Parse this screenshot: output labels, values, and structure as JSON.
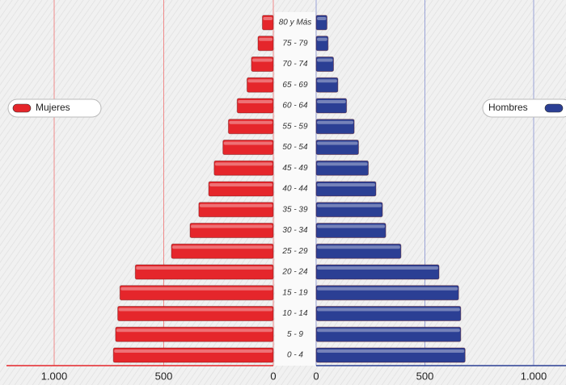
{
  "chart_data": {
    "type": "pyramid",
    "categories": [
      "0 - 4",
      "5 - 9",
      "10 - 14",
      "15 - 19",
      "20 - 24",
      "25 - 29",
      "30 - 34",
      "35 - 39",
      "40 - 44",
      "45 - 49",
      "50 - 54",
      "55 - 59",
      "60 - 64",
      "65 - 69",
      "70 - 74",
      "75 - 79",
      "80 y Más"
    ],
    "series": [
      {
        "name": "Mujeres",
        "color": "#e5262b",
        "values": [
          730,
          720,
          710,
          700,
          630,
          465,
          380,
          340,
          295,
          270,
          230,
          205,
          165,
          120,
          100,
          70,
          50
        ]
      },
      {
        "name": "Hombres",
        "color": "#2b3f94",
        "values": [
          685,
          665,
          665,
          655,
          565,
          390,
          320,
          305,
          275,
          240,
          195,
          175,
          140,
          100,
          80,
          55,
          50
        ]
      }
    ],
    "xlim": [
      0,
      1000
    ],
    "xticks": [
      0,
      500,
      {
        "value": 1000,
        "label": "1.000"
      }
    ],
    "grid": true
  }
}
